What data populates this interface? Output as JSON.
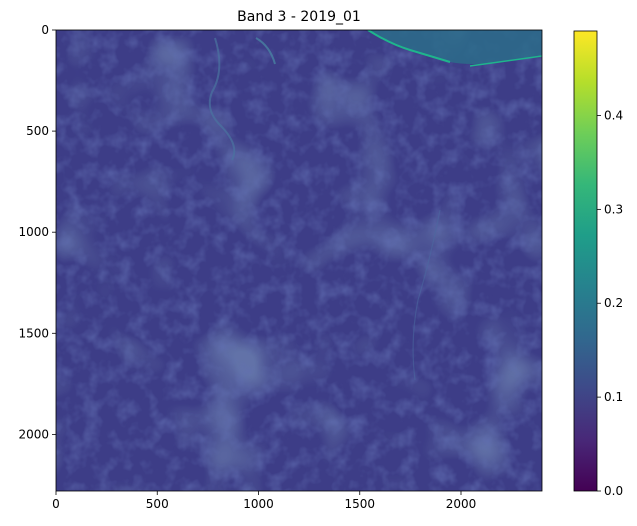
{
  "chart_data": {
    "type": "heatmap",
    "title": "Band 3 - 2019_01",
    "xlabel": "",
    "ylabel": "",
    "x_ticks": [
      "0",
      "500",
      "1000",
      "1500",
      "2000"
    ],
    "x_tick_values": [
      0,
      500,
      1000,
      1500,
      2000
    ],
    "y_ticks": [
      "0",
      "500",
      "1000",
      "1500",
      "2000"
    ],
    "y_tick_values": [
      0,
      500,
      1000,
      1500,
      2000
    ],
    "xlim": [
      0,
      2400
    ],
    "ylim": [
      2280,
      0
    ],
    "colormap": "viridis",
    "colorbar": {
      "ticks": [
        "0.0",
        "0.1",
        "0.2",
        "0.3",
        "0.4"
      ],
      "tick_values": [
        0.0,
        0.1,
        0.2,
        0.3,
        0.4
      ],
      "range": [
        0.0,
        0.49
      ]
    },
    "grid": false,
    "colors": {
      "viridis_stops": [
        "#440154",
        "#482878",
        "#3e4989",
        "#31688e",
        "#26828e",
        "#1f9e89",
        "#35b779",
        "#6ece58",
        "#b5de2b",
        "#fde725"
      ],
      "image_base": "#3d3d87",
      "water": "#2c6c8a",
      "water_edge": "#1fb58c"
    }
  }
}
